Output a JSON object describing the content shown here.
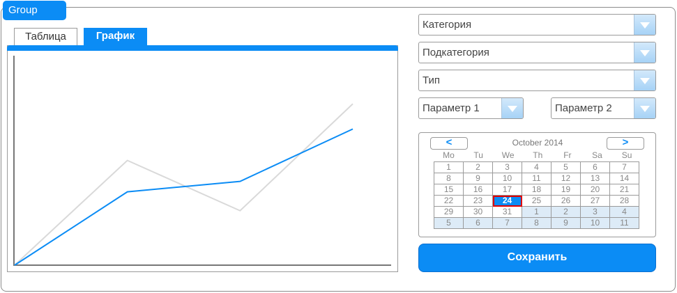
{
  "group": {
    "title": "Group"
  },
  "tabs": [
    {
      "label": "Таблица",
      "active": false
    },
    {
      "label": "График",
      "active": true
    }
  ],
  "chart_data": {
    "type": "line",
    "title": "",
    "xlabel": "",
    "ylabel": "",
    "x": [
      0,
      1,
      2,
      3
    ],
    "series": [
      {
        "values": [
          0,
          35,
          40,
          65
        ],
        "color": "#0b8cf5"
      },
      {
        "values": [
          0,
          50,
          26,
          77
        ],
        "color": "#d9d9d9"
      }
    ],
    "ylim": [
      0,
      100
    ],
    "grid": false
  },
  "dropdowns": {
    "category": "Категория",
    "subcategory": "Подкатегория",
    "type": "Тип",
    "param1": "Параметр 1",
    "param2": "Параметр 2",
    "arrow_icon": "chevron-down-icon"
  },
  "calendar": {
    "month_label": "October 2014",
    "prev_label": "<",
    "next_label": ">",
    "weekdays": [
      "Mo",
      "Tu",
      "We",
      "Th",
      "Fr",
      "Sa",
      "Su"
    ],
    "weeks": [
      [
        1,
        2,
        3,
        4,
        5,
        6,
        7
      ],
      [
        8,
        9,
        10,
        11,
        12,
        13,
        14
      ],
      [
        15,
        16,
        17,
        18,
        19,
        20,
        21
      ],
      [
        22,
        23,
        24,
        25,
        26,
        27,
        28
      ],
      [
        29,
        30,
        31,
        1,
        2,
        3,
        4
      ],
      [
        5,
        6,
        7,
        8,
        9,
        10,
        11
      ]
    ],
    "selected_day": 24,
    "next_month_start_index": 31
  },
  "save_button": {
    "label": "Сохранить"
  },
  "colors": {
    "accent": "#0b8cf5",
    "series_gray": "#d9d9d9",
    "selected_outline": "#e00000",
    "other_month_bg": "#ddebf7"
  }
}
